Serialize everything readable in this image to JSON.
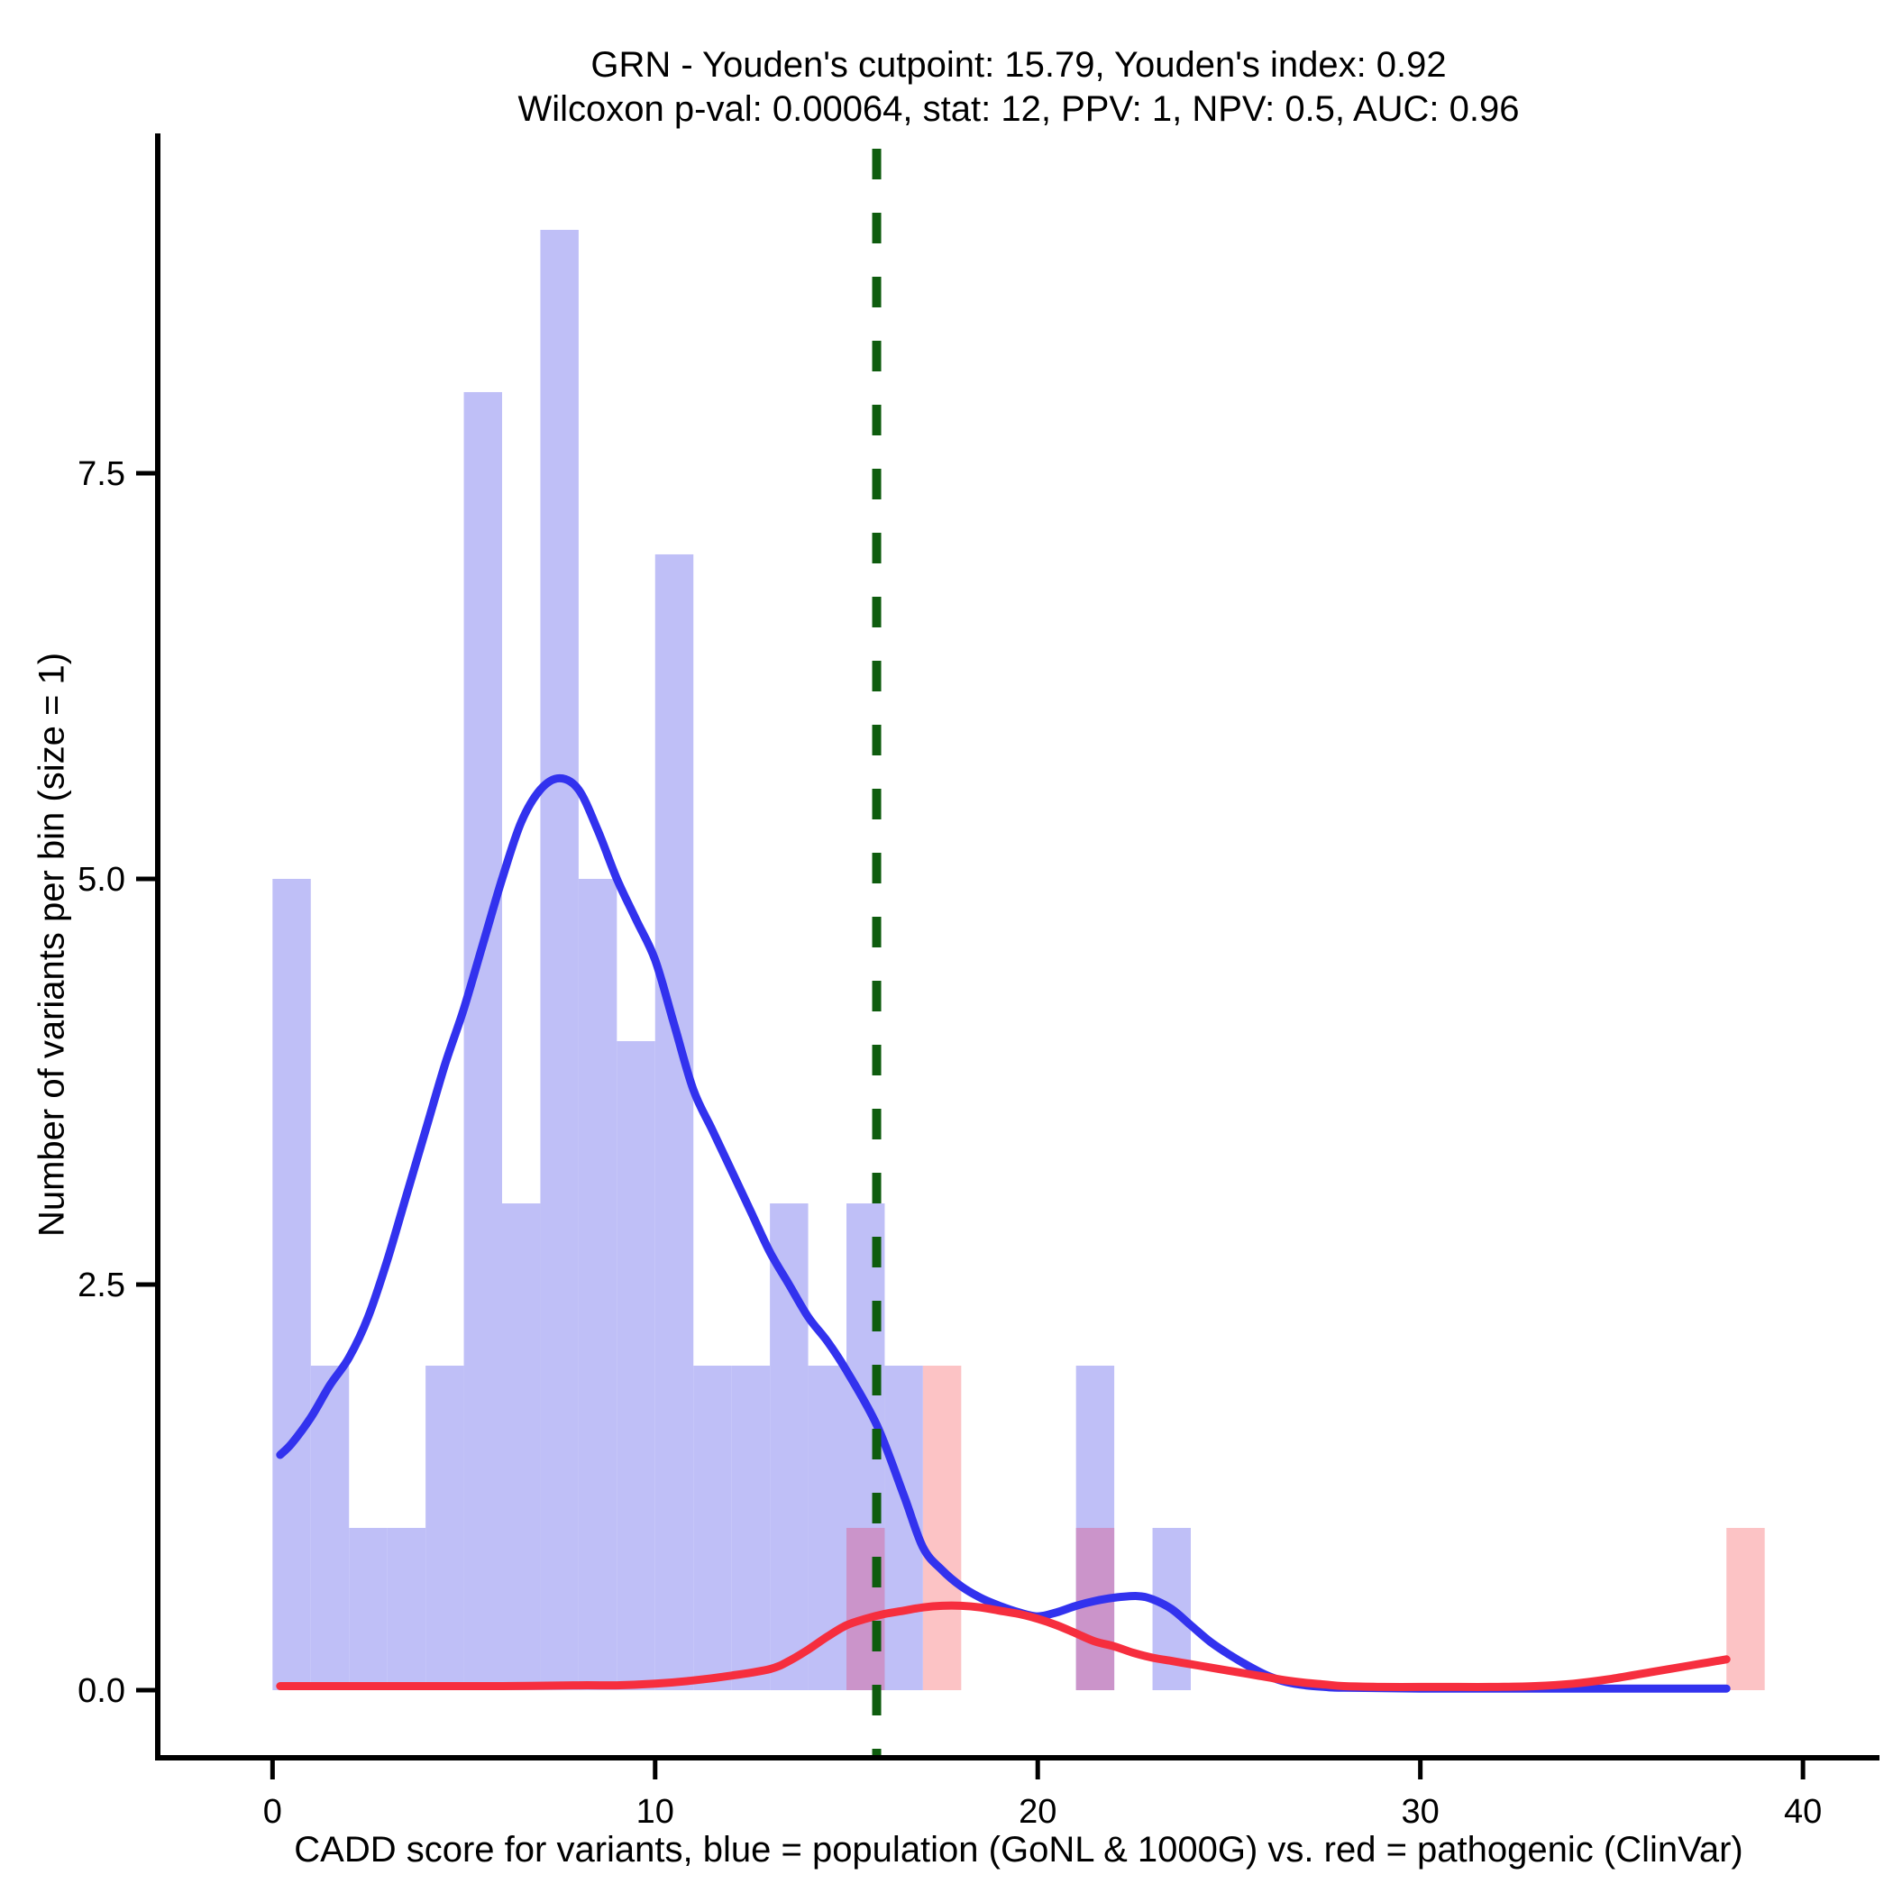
{
  "title": {
    "line1": "GRN - Youden's cutpoint: 15.79, Youden's index: 0.92",
    "line2": "Wilcoxon p-val: 0.00064, stat: 12, PPV: 1, NPV: 0.5, AUC: 0.96"
  },
  "axes": {
    "x_label": "CADD score for variants, blue = population (GoNL & 1000G) vs. red = pathogenic (ClinVar)",
    "y_label": "Number of variants per bin (size = 1)",
    "x_tick_labels": [
      "0",
      "10",
      "20",
      "30",
      "40"
    ],
    "x_tick_values": [
      0,
      10,
      20,
      30,
      40
    ],
    "y_tick_labels": [
      "0.0",
      "2.5",
      "5.0",
      "7.5"
    ],
    "y_tick_values": [
      0,
      2.5,
      5,
      7.5
    ]
  },
  "colors": {
    "population_bar": "#bfbff7",
    "pathogenic_bar": "#fcc3c5",
    "overlap_bar": "#cb94ca",
    "population_line": "#3232ee",
    "pathogenic_line": "#f62e3e",
    "cutpoint_line": "#0e5c0e",
    "axis": "#000000"
  },
  "chart_data": {
    "type": "bar",
    "subtype": "histogram-with-density",
    "title": "GRN - Youden's cutpoint: 15.79, Youden's index: 0.92",
    "subtitle": "Wilcoxon p-val: 0.00064, stat: 12, PPV: 1, NPV: 0.5, AUC: 0.96",
    "xlabel": "CADD score for variants, blue = population (GoNL & 1000G) vs. red = pathogenic (ClinVar)",
    "ylabel": "Number of variants per bin (size = 1)",
    "stats": {
      "gene": "GRN",
      "youden_cutpoint": 15.79,
      "youden_index": 0.92,
      "wilcoxon_p": 0.00064,
      "stat": 12,
      "ppv": 1,
      "npv": 0.5,
      "auc": 0.96
    },
    "bin_width": 1,
    "xlim": [
      -3,
      42
    ],
    "ylim": [
      -0.4167,
      9.5833
    ],
    "grid": false,
    "legend_position": "none",
    "cutpoint": 15.79,
    "series": [
      {
        "name": "population (GoNL & 1000G)",
        "color_key": "population",
        "bars": [
          {
            "x": 0,
            "h": 5
          },
          {
            "x": 1,
            "h": 2
          },
          {
            "x": 2,
            "h": 1
          },
          {
            "x": 3,
            "h": 1
          },
          {
            "x": 4,
            "h": 2
          },
          {
            "x": 5,
            "h": 8
          },
          {
            "x": 6,
            "h": 3
          },
          {
            "x": 7,
            "h": 9
          },
          {
            "x": 8,
            "h": 5
          },
          {
            "x": 9,
            "h": 4
          },
          {
            "x": 10,
            "h": 7
          },
          {
            "x": 11,
            "h": 2
          },
          {
            "x": 12,
            "h": 2
          },
          {
            "x": 13,
            "h": 3
          },
          {
            "x": 14,
            "h": 2
          },
          {
            "x": 15,
            "h": 3
          },
          {
            "x": 16,
            "h": 2
          },
          {
            "x": 21,
            "h": 2
          },
          {
            "x": 23,
            "h": 1
          }
        ],
        "density": [
          [
            0.2,
            1.45
          ],
          [
            0.5,
            1.52
          ],
          [
            1,
            1.68
          ],
          [
            1.5,
            1.88
          ],
          [
            2,
            2.05
          ],
          [
            2.5,
            2.3
          ],
          [
            3,
            2.65
          ],
          [
            3.5,
            3.05
          ],
          [
            4,
            3.45
          ],
          [
            4.5,
            3.85
          ],
          [
            5,
            4.2
          ],
          [
            5.5,
            4.6
          ],
          [
            6,
            5.0
          ],
          [
            6.5,
            5.35
          ],
          [
            7,
            5.55
          ],
          [
            7.5,
            5.62
          ],
          [
            8,
            5.55
          ],
          [
            8.5,
            5.3
          ],
          [
            9,
            5.0
          ],
          [
            9.5,
            4.75
          ],
          [
            10,
            4.5
          ],
          [
            10.5,
            4.1
          ],
          [
            11,
            3.7
          ],
          [
            11.5,
            3.45
          ],
          [
            12,
            3.2
          ],
          [
            12.5,
            2.95
          ],
          [
            13,
            2.7
          ],
          [
            13.5,
            2.5
          ],
          [
            14,
            2.3
          ],
          [
            14.5,
            2.15
          ],
          [
            15,
            1.97
          ],
          [
            15.8,
            1.63
          ],
          [
            16.5,
            1.2
          ],
          [
            17,
            0.88
          ],
          [
            17.5,
            0.74
          ],
          [
            18,
            0.64
          ],
          [
            18.5,
            0.57
          ],
          [
            19,
            0.52
          ],
          [
            19.5,
            0.48
          ],
          [
            20,
            0.455
          ],
          [
            20.5,
            0.48
          ],
          [
            21,
            0.52
          ],
          [
            21.5,
            0.55
          ],
          [
            22,
            0.57
          ],
          [
            22.6,
            0.58
          ],
          [
            23,
            0.56
          ],
          [
            23.5,
            0.5
          ],
          [
            24,
            0.4
          ],
          [
            24.5,
            0.3
          ],
          [
            25,
            0.22
          ],
          [
            25.5,
            0.15
          ],
          [
            26,
            0.09
          ],
          [
            26.5,
            0.05
          ],
          [
            27,
            0.03
          ],
          [
            27.5,
            0.02
          ],
          [
            28,
            0.015
          ],
          [
            30,
            0.01
          ],
          [
            33,
            0.01
          ],
          [
            36,
            0.01
          ],
          [
            38,
            0.01
          ]
        ]
      },
      {
        "name": "pathogenic (ClinVar)",
        "color_key": "pathogenic",
        "bars": [
          {
            "x": 15,
            "h": 1,
            "overlap": true
          },
          {
            "x": 17,
            "h": 2,
            "overlap": false
          },
          {
            "x": 21,
            "h": 1,
            "overlap": true
          },
          {
            "x": 38,
            "h": 1,
            "overlap": false
          }
        ],
        "density": [
          [
            0.2,
            0.025
          ],
          [
            2,
            0.025
          ],
          [
            4,
            0.025
          ],
          [
            6,
            0.025
          ],
          [
            8,
            0.03
          ],
          [
            9,
            0.03
          ],
          [
            10,
            0.04
          ],
          [
            11,
            0.06
          ],
          [
            12,
            0.09
          ],
          [
            13,
            0.13
          ],
          [
            13.5,
            0.18
          ],
          [
            14,
            0.25
          ],
          [
            14.5,
            0.33
          ],
          [
            15,
            0.4
          ],
          [
            15.5,
            0.44
          ],
          [
            16,
            0.47
          ],
          [
            16.5,
            0.49
          ],
          [
            17,
            0.51
          ],
          [
            17.5,
            0.52
          ],
          [
            18,
            0.52
          ],
          [
            18.5,
            0.51
          ],
          [
            19,
            0.49
          ],
          [
            19.5,
            0.47
          ],
          [
            20,
            0.44
          ],
          [
            20.5,
            0.4
          ],
          [
            21,
            0.35
          ],
          [
            21.5,
            0.3
          ],
          [
            22,
            0.27
          ],
          [
            22.5,
            0.23
          ],
          [
            23,
            0.2
          ],
          [
            23.5,
            0.18
          ],
          [
            24,
            0.16
          ],
          [
            24.5,
            0.14
          ],
          [
            25,
            0.12
          ],
          [
            25.5,
            0.1
          ],
          [
            26,
            0.08
          ],
          [
            26.5,
            0.06
          ],
          [
            27,
            0.045
          ],
          [
            27.5,
            0.035
          ],
          [
            28,
            0.025
          ],
          [
            29,
            0.02
          ],
          [
            30,
            0.02
          ],
          [
            31,
            0.02
          ],
          [
            32,
            0.02
          ],
          [
            33,
            0.025
          ],
          [
            34,
            0.04
          ],
          [
            35,
            0.07
          ],
          [
            36,
            0.11
          ],
          [
            37,
            0.15
          ],
          [
            37.5,
            0.17
          ],
          [
            38,
            0.19
          ]
        ]
      }
    ]
  }
}
